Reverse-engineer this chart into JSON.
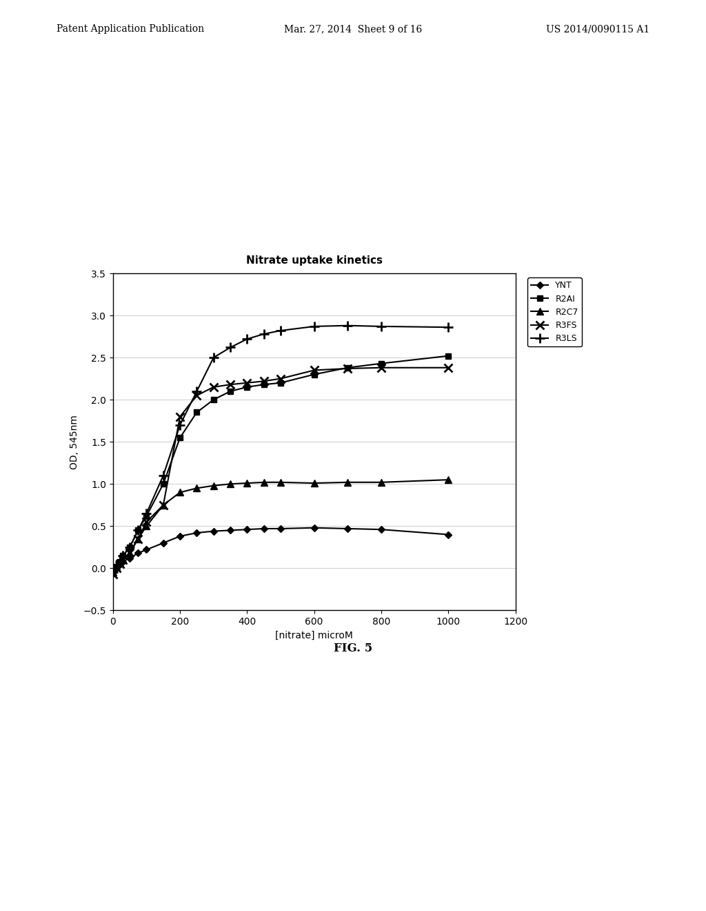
{
  "title": "Nitrate uptake kinetics",
  "xlabel": "[nitrate] microM",
  "ylabel": "OD, 545nm",
  "xlim": [
    0,
    1200
  ],
  "ylim": [
    -0.5,
    3.5
  ],
  "xticks": [
    0,
    200,
    400,
    600,
    800,
    1000,
    1200
  ],
  "yticks": [
    -0.5,
    0,
    0.5,
    1,
    1.5,
    2,
    2.5,
    3,
    3.5
  ],
  "series": {
    "YNT": {
      "x": [
        0,
        10,
        20,
        30,
        50,
        75,
        100,
        150,
        200,
        250,
        300,
        350,
        400,
        450,
        500,
        600,
        700,
        800,
        1000
      ],
      "y": [
        -0.05,
        0.0,
        0.05,
        0.08,
        0.12,
        0.18,
        0.22,
        0.3,
        0.38,
        0.42,
        0.44,
        0.45,
        0.46,
        0.47,
        0.47,
        0.48,
        0.47,
        0.46,
        0.4
      ],
      "color": "#000000",
      "linewidth": 1.5,
      "label": "YNT"
    },
    "R2AI": {
      "x": [
        0,
        10,
        20,
        30,
        50,
        75,
        100,
        150,
        200,
        250,
        300,
        350,
        400,
        450,
        500,
        600,
        700,
        800,
        1000
      ],
      "y": [
        -0.05,
        0.02,
        0.08,
        0.15,
        0.25,
        0.45,
        0.62,
        1.0,
        1.55,
        1.85,
        2.0,
        2.1,
        2.15,
        2.18,
        2.2,
        2.3,
        2.38,
        2.43,
        2.52
      ],
      "color": "#000000",
      "linewidth": 1.5,
      "label": "R2AI"
    },
    "R2C7": {
      "x": [
        0,
        10,
        20,
        30,
        50,
        75,
        100,
        150,
        200,
        250,
        300,
        350,
        400,
        450,
        500,
        600,
        700,
        800,
        1000
      ],
      "y": [
        -0.05,
        0.02,
        0.06,
        0.1,
        0.18,
        0.35,
        0.5,
        0.75,
        0.9,
        0.95,
        0.98,
        1.0,
        1.01,
        1.02,
        1.02,
        1.01,
        1.02,
        1.02,
        1.05
      ],
      "color": "#000000",
      "linewidth": 1.5,
      "label": "R2C7"
    },
    "R3FS": {
      "x": [
        0,
        10,
        20,
        30,
        50,
        75,
        100,
        150,
        200,
        250,
        300,
        350,
        400,
        450,
        500,
        600,
        700,
        800,
        1000
      ],
      "y": [
        -0.07,
        0.0,
        0.05,
        0.1,
        0.18,
        0.35,
        0.55,
        0.75,
        1.8,
        2.05,
        2.15,
        2.18,
        2.2,
        2.22,
        2.25,
        2.35,
        2.37,
        2.38,
        2.38
      ],
      "color": "#000000",
      "linewidth": 1.5,
      "label": "R3FS"
    },
    "R3LS": {
      "x": [
        0,
        10,
        20,
        30,
        50,
        75,
        100,
        150,
        200,
        250,
        300,
        350,
        400,
        450,
        500,
        600,
        700,
        800,
        1000
      ],
      "y": [
        -0.05,
        0.02,
        0.08,
        0.15,
        0.25,
        0.45,
        0.65,
        1.1,
        1.7,
        2.1,
        2.5,
        2.62,
        2.72,
        2.78,
        2.82,
        2.87,
        2.88,
        2.87,
        2.86
      ],
      "color": "#000000",
      "linewidth": 1.5,
      "label": "R3LS"
    }
  },
  "background_color": "#ffffff",
  "plot_bg_color": "#ffffff",
  "header_left": "Patent Application Publication",
  "header_center": "Mar. 27, 2014  Sheet 9 of 16",
  "header_right": "US 2014/0090115 A1",
  "fig_label": "FIG. 5"
}
